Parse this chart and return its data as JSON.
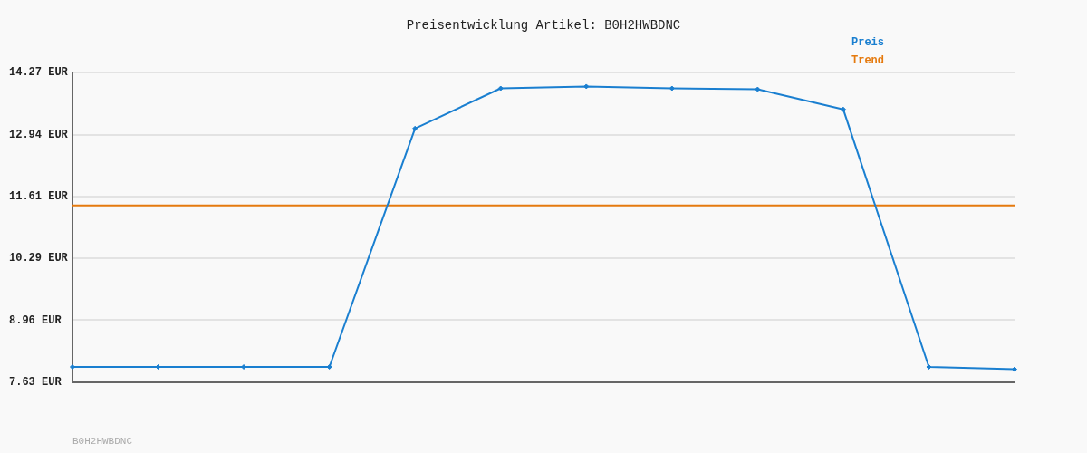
{
  "chart_data": {
    "type": "line",
    "title": "Preisentwicklung Artikel: B0H2HWBDNC",
    "annotations": [
      "B0H2HWBDNC"
    ],
    "categories": [
      null,
      null,
      null,
      null,
      null,
      null,
      null,
      null,
      null,
      null,
      null,
      null
    ],
    "series": [
      {
        "name": "Preis",
        "color": "#1a7fd0",
        "marker": "diamond",
        "values": [
          7.96,
          7.96,
          7.96,
          7.96,
          13.07,
          13.93,
          13.97,
          13.93,
          13.91,
          13.48,
          7.96,
          7.91
        ]
      },
      {
        "name": "Trend",
        "color": "#e57a0e",
        "marker": "none",
        "values": [
          11.42,
          11.42,
          11.42,
          11.42,
          11.42,
          11.42,
          11.42,
          11.42,
          11.42,
          11.42,
          11.42,
          11.42
        ]
      }
    ],
    "ylim": [
      7.63,
      14.27
    ],
    "yticks": [
      {
        "value": 7.63,
        "label": "7.63 EUR"
      },
      {
        "value": 8.96,
        "label": "8.96 EUR"
      },
      {
        "value": 10.29,
        "label": "10.29 EUR"
      },
      {
        "value": 11.61,
        "label": "11.61 EUR"
      },
      {
        "value": 12.94,
        "label": "12.94 EUR"
      },
      {
        "value": 14.27,
        "label": "14.27 EUR"
      }
    ],
    "grid": "y",
    "legend": "top right",
    "tick_labels": "y",
    "line_style": "solid"
  }
}
